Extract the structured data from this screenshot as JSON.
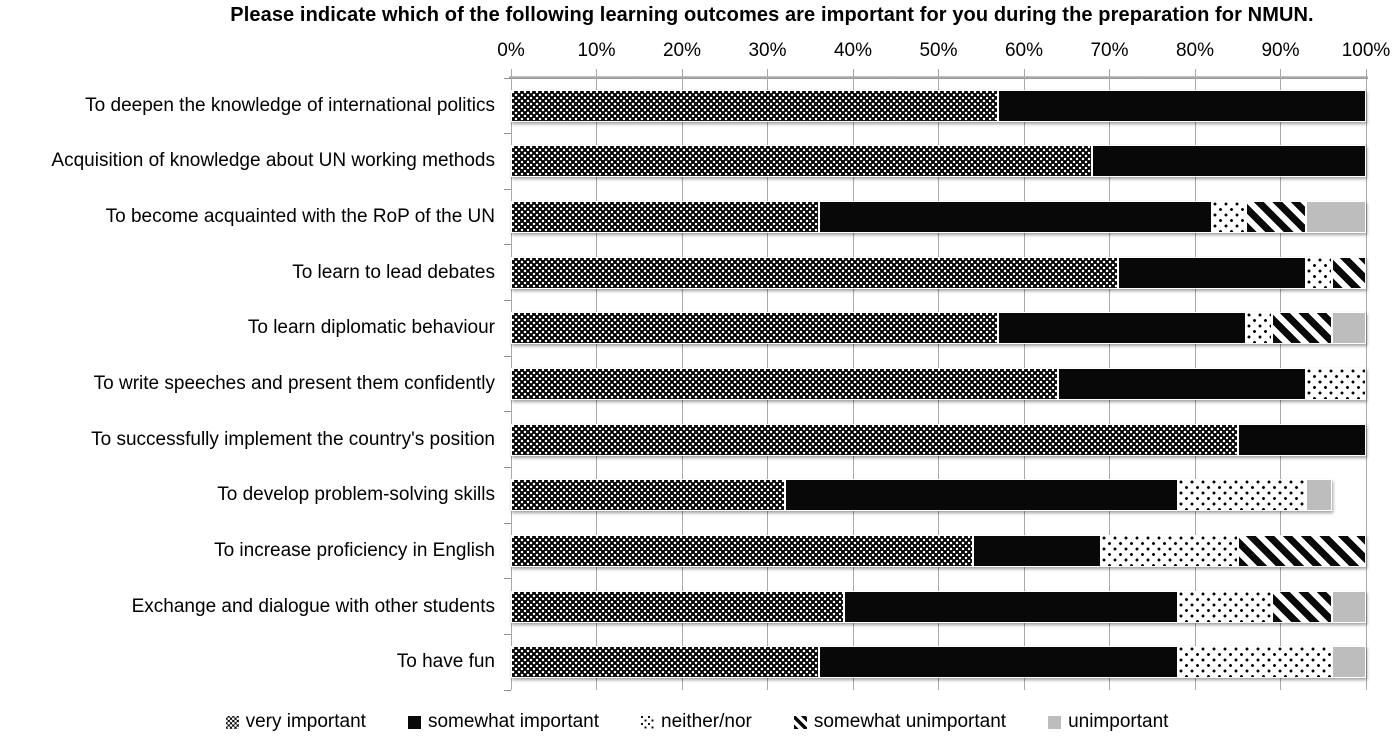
{
  "chart_data": {
    "type": "bar",
    "orientation": "horizontal-stacked",
    "title": "Please indicate which of the following learning outcomes are important for you during the preparation for NMUN.",
    "xlabel": "",
    "ylabel": "",
    "xlim": [
      0,
      100
    ],
    "x_ticks": [
      "0%",
      "10%",
      "20%",
      "30%",
      "40%",
      "50%",
      "60%",
      "70%",
      "80%",
      "90%",
      "100%"
    ],
    "grid": true,
    "axis_labels_position": "top",
    "legend_position": "bottom",
    "gridline_color": "#a9a9a9",
    "categories": [
      "To deepen the knowledge of international politics",
      "Acquisition of knowledge about UN working methods",
      "To become acquainted with the RoP of the UN",
      "To learn to lead debates",
      "To learn diplomatic behaviour",
      "To write speeches and present them confidently",
      "To successfully implement the country's position",
      "To develop problem-solving skills",
      "To increase proficiency in English",
      "Exchange and dialogue with other students",
      "To have fun"
    ],
    "series": [
      {
        "name": "very important",
        "key": "very-important",
        "pattern": "dense-white-dots-on-black",
        "color": "#050505",
        "values": [
          57,
          68,
          36,
          71,
          57,
          64,
          85,
          32,
          54,
          39,
          36
        ]
      },
      {
        "name": "somewhat important",
        "key": "somewhat-important",
        "pattern": "solid-black",
        "color": "#080808",
        "values": [
          43,
          32,
          46,
          22,
          29,
          29,
          15,
          46,
          15,
          39,
          42
        ]
      },
      {
        "name": "neither/nor",
        "key": "neither-nor",
        "pattern": "sparse-black-dots-on-white",
        "color": "#ffffff",
        "values": [
          0,
          0,
          4,
          3,
          3,
          7,
          0,
          15,
          16,
          11,
          18
        ]
      },
      {
        "name": "somewhat unimportant",
        "key": "somewhat-unimportant",
        "pattern": "black-diagonal-stripes",
        "color": "#0a0a0a",
        "values": [
          0,
          0,
          7,
          4,
          7,
          0,
          0,
          0,
          15,
          7,
          0
        ]
      },
      {
        "name": "unimportant",
        "key": "unimportant",
        "pattern": "solid-light-gray",
        "color": "#bdbdbd",
        "values": [
          0,
          0,
          7,
          0,
          4,
          0,
          0,
          3,
          0,
          4,
          4
        ]
      }
    ]
  }
}
